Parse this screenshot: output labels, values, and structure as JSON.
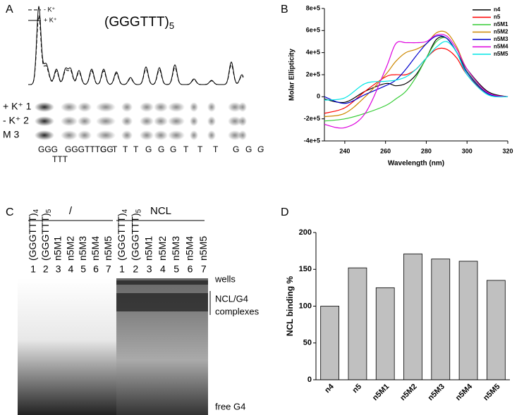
{
  "panel_labels": [
    "A",
    "B",
    "C",
    "D"
  ],
  "panel_a": {
    "title": "(GGGTTT)",
    "title_sub": "5",
    "legend": [
      "- K⁺",
      "+ K⁺"
    ],
    "rows": [
      "+ K⁺ 1",
      "- K⁺ 2",
      "M 3"
    ],
    "sequence": [
      "GGG",
      "GGGTTTGG",
      "G",
      "T",
      "T",
      "T",
      "G",
      "G",
      "G",
      "T",
      "T",
      "T",
      "G",
      "G",
      "G"
    ],
    "loop": "TTT"
  },
  "panel_c": {
    "groups": [
      "/",
      "NCL"
    ],
    "lanes": [
      {
        "name": "(GGGTTT)",
        "sub": "4"
      },
      {
        "name": "(GGGTTT)",
        "sub": "5"
      },
      {
        "name": "n5M1"
      },
      {
        "name": "n5M2"
      },
      {
        "name": "n5M3"
      },
      {
        "name": "n5M4"
      },
      {
        "name": "n5M5"
      }
    ],
    "lane_numbers": [
      1,
      2,
      3,
      4,
      5,
      6,
      7
    ],
    "annotations": [
      "wells",
      "NCL/G4",
      "complexes",
      "free G4"
    ]
  },
  "chart_data": [
    {
      "type": "line",
      "x_label": "Wavelength (nm)",
      "y_label": "Molar Ellipticity",
      "x": [
        230,
        240,
        250,
        260,
        265,
        270,
        275,
        280,
        285,
        290,
        295,
        300,
        310,
        320
      ],
      "xlim": [
        230,
        320
      ],
      "xticks": [
        240,
        260,
        280,
        300,
        320
      ],
      "ylim": [
        -400000,
        800000
      ],
      "yticks": [
        {
          "value": -400000,
          "label": "-4e+5"
        },
        {
          "value": -200000,
          "label": "-2e+5"
        },
        0,
        {
          "value": 200000,
          "label": "2e+5"
        },
        {
          "value": 400000,
          "label": "4e+5"
        },
        {
          "value": 600000,
          "label": "6e+5"
        },
        {
          "value": 800000,
          "label": "8e+5"
        }
      ],
      "legend": "upper right",
      "series": [
        {
          "name": "n4",
          "color": "#000000",
          "values": [
            -20000,
            -50000,
            50000,
            120000,
            100000,
            120000,
            200000,
            350000,
            520000,
            530000,
            400000,
            250000,
            50000,
            0
          ]
        },
        {
          "name": "n5",
          "color": "#ff0000",
          "values": [
            -150000,
            -100000,
            50000,
            180000,
            200000,
            200000,
            250000,
            350000,
            430000,
            430000,
            350000,
            200000,
            30000,
            0
          ]
        },
        {
          "name": "n5M1",
          "color": "#33cc33",
          "values": [
            -220000,
            -200000,
            -150000,
            -80000,
            -20000,
            50000,
            180000,
            350000,
            500000,
            530000,
            400000,
            230000,
            30000,
            0
          ]
        },
        {
          "name": "n5M2",
          "color": "#cc8800",
          "values": [
            -180000,
            -150000,
            0,
            200000,
            320000,
            400000,
            430000,
            480000,
            580000,
            580000,
            450000,
            250000,
            40000,
            0
          ]
        },
        {
          "name": "n5M3",
          "color": "#0000cc",
          "values": [
            0,
            -60000,
            20000,
            100000,
            150000,
            250000,
            370000,
            480000,
            550000,
            530000,
            400000,
            220000,
            30000,
            0
          ]
        },
        {
          "name": "n5M4",
          "color": "#dd00dd",
          "values": [
            -250000,
            -280000,
            -150000,
            250000,
            480000,
            490000,
            490000,
            500000,
            560000,
            550000,
            430000,
            250000,
            40000,
            0
          ]
        },
        {
          "name": "n5M5",
          "color": "#00e5e5",
          "values": [
            -30000,
            -10000,
            120000,
            140000,
            150000,
            180000,
            250000,
            350000,
            450000,
            500000,
            400000,
            200000,
            20000,
            0
          ]
        }
      ]
    },
    {
      "type": "bar",
      "y_label": "NCL binding %",
      "categories": [
        "n4",
        "n5",
        "n5M1",
        "n5M2",
        "n5M3",
        "n5M4",
        "n5M5"
      ],
      "values": [
        100,
        152,
        125,
        171,
        164,
        161,
        135
      ],
      "color": "#c0c0c0",
      "ylim": [
        0,
        200
      ],
      "yticks": [
        0,
        50,
        100,
        150,
        200
      ]
    }
  ]
}
